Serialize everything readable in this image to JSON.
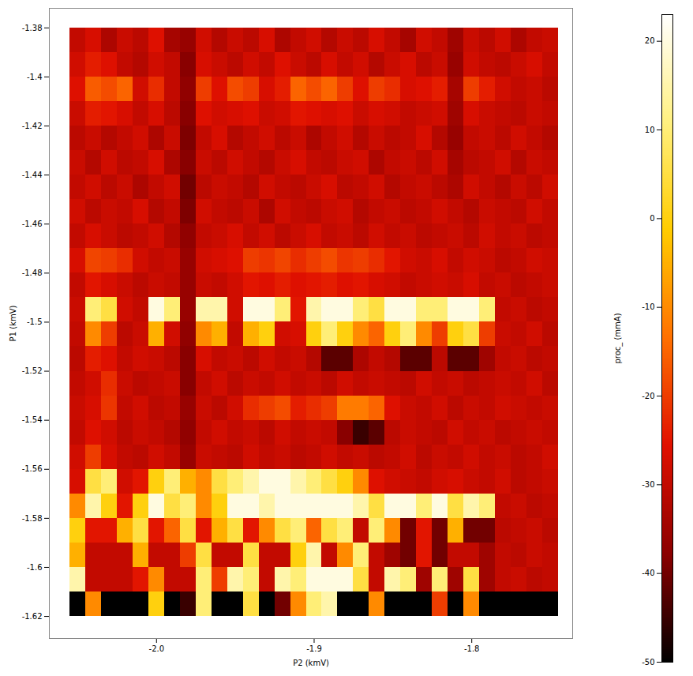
{
  "chart_data": {
    "type": "heatmap",
    "x_label": "P2 (kmV)",
    "y_label": "P1 (kmV)",
    "xlim": [
      -2.068,
      -1.736
    ],
    "ylim": [
      -1.629,
      -1.372
    ],
    "xticks": [
      {
        "value": -2,
        "label": "-2.0"
      },
      -1.9,
      -1.8
    ],
    "yticks": [
      -1.38,
      -1.4,
      -1.42,
      -1.44,
      -1.46,
      -1.48,
      -1.5,
      -1.52,
      -1.54,
      -1.56,
      -1.58,
      -1.6,
      -1.62
    ],
    "x": [
      -2.05,
      -2.04,
      -2.03,
      -2.02,
      -2.01,
      -2.0,
      -1.99,
      -1.98,
      -1.97,
      -1.96,
      -1.95,
      -1.94,
      -1.93,
      -1.92,
      -1.91,
      -1.9,
      -1.89,
      -1.88,
      -1.87,
      -1.86,
      -1.85,
      -1.84,
      -1.83,
      -1.82,
      -1.81,
      -1.8,
      -1.79,
      -1.78,
      -1.77,
      -1.76,
      -1.75
    ],
    "y": [
      -1.385,
      -1.395,
      -1.405,
      -1.415,
      -1.425,
      -1.435,
      -1.445,
      -1.455,
      -1.465,
      -1.475,
      -1.485,
      -1.495,
      -1.505,
      -1.515,
      -1.525,
      -1.535,
      -1.545,
      -1.555,
      -1.565,
      -1.575,
      -1.585,
      -1.595,
      -1.605,
      -1.615
    ],
    "values": [
      [
        -30,
        -27,
        -33,
        -29,
        -31,
        -26,
        -34,
        -36,
        -28,
        -32,
        -29,
        -31,
        -27,
        -33,
        -30,
        -28,
        -32,
        -29,
        -31,
        -27,
        -30,
        -34,
        -28,
        -30,
        -35,
        -29,
        -31,
        -28,
        -33,
        -30,
        -29
      ],
      [
        -28,
        -24,
        -26,
        -30,
        -32,
        -28,
        -30,
        -38,
        -27,
        -29,
        -31,
        -28,
        -30,
        -26,
        -29,
        -31,
        -27,
        -30,
        -28,
        -32,
        -29,
        -27,
        -31,
        -29,
        -36,
        -28,
        -30,
        -31,
        -29,
        -27,
        -30
      ],
      [
        -26,
        -16,
        -18,
        -15,
        -28,
        -22,
        -30,
        -37,
        -20,
        -26,
        -18,
        -20,
        -27,
        -24,
        -15,
        -18,
        -15,
        -20,
        -26,
        -20,
        -22,
        -27,
        -26,
        -24,
        -34,
        -20,
        -24,
        -28,
        -30,
        -29,
        -31
      ],
      [
        -29,
        -24,
        -25,
        -27,
        -30,
        -27,
        -31,
        -38,
        -26,
        -28,
        -27,
        -26,
        -29,
        -28,
        -25,
        -26,
        -27,
        -26,
        -29,
        -27,
        -28,
        -30,
        -29,
        -28,
        -35,
        -27,
        -29,
        -30,
        -31,
        -29,
        -30
      ],
      [
        -31,
        -29,
        -32,
        -30,
        -28,
        -33,
        -29,
        -39,
        -30,
        -27,
        -32,
        -30,
        -28,
        -31,
        -29,
        -33,
        -30,
        -28,
        -32,
        -29,
        -31,
        -30,
        -27,
        -32,
        -36,
        -30,
        -29,
        -31,
        -28,
        -30,
        -32
      ],
      [
        -29,
        -32,
        -28,
        -31,
        -30,
        -27,
        -33,
        -38,
        -29,
        -31,
        -28,
        -30,
        -32,
        -29,
        -27,
        -30,
        -31,
        -29,
        -28,
        -33,
        -30,
        -29,
        -31,
        -28,
        -34,
        -31,
        -30,
        -28,
        -32,
        -29,
        -30
      ],
      [
        -30,
        -28,
        -31,
        -29,
        -33,
        -30,
        -28,
        -40,
        -31,
        -29,
        -30,
        -32,
        -28,
        -30,
        -31,
        -29,
        -27,
        -31,
        -30,
        -28,
        -32,
        -30,
        -29,
        -31,
        -33,
        -28,
        -30,
        -32,
        -29,
        -31,
        -28
      ],
      [
        -28,
        -31,
        -29,
        -30,
        -27,
        -32,
        -30,
        -39,
        -28,
        -30,
        -31,
        -29,
        -33,
        -28,
        -30,
        -31,
        -29,
        -28,
        -32,
        -30,
        -29,
        -31,
        -30,
        -28,
        -30,
        -32,
        -29,
        -30,
        -31,
        -28,
        -30
      ],
      [
        -30,
        -27,
        -29,
        -31,
        -30,
        -28,
        -32,
        -37,
        -30,
        -29,
        -27,
        -30,
        -28,
        -31,
        -29,
        -27,
        -30,
        -29,
        -31,
        -28,
        -30,
        -29,
        -31,
        -30,
        -29,
        -31,
        -28,
        -30,
        -29,
        -31,
        -30
      ],
      [
        -27,
        -19,
        -20,
        -22,
        -28,
        -30,
        -29,
        -36,
        -28,
        -27,
        -26,
        -20,
        -21,
        -19,
        -22,
        -20,
        -18,
        -21,
        -20,
        -22,
        -25,
        -28,
        -29,
        -27,
        -30,
        -28,
        -29,
        -31,
        -30,
        -28,
        -29
      ],
      [
        -30,
        -25,
        -27,
        -29,
        -31,
        -29,
        -30,
        -36,
        -29,
        -30,
        -28,
        -25,
        -26,
        -24,
        -26,
        -25,
        -24,
        -26,
        -25,
        -27,
        -28,
        -30,
        -29,
        -28,
        -29,
        -27,
        -30,
        -29,
        -31,
        -30,
        -29
      ],
      [
        -29,
        10,
        5,
        -28,
        -30,
        20,
        10,
        -36,
        15,
        15,
        -28,
        20,
        20,
        10,
        -25,
        15,
        20,
        20,
        10,
        5,
        20,
        20,
        10,
        10,
        20,
        20,
        10,
        -30,
        -29,
        -31,
        -30
      ],
      [
        -30,
        -10,
        -20,
        -31,
        -29,
        -5,
        -28,
        -37,
        -10,
        -5,
        -30,
        -5,
        0,
        -28,
        -27,
        0,
        10,
        0,
        -10,
        -15,
        0,
        10,
        -10,
        -20,
        0,
        5,
        -20,
        -29,
        -30,
        -28,
        -31
      ],
      [
        -31,
        -24,
        -26,
        -30,
        -28,
        -29,
        -31,
        -38,
        -27,
        -30,
        -29,
        -31,
        -28,
        -30,
        -29,
        -32,
        -42,
        -42,
        -33,
        -30,
        -32,
        -42,
        -42,
        -31,
        -42,
        -42,
        -35,
        -30,
        -29,
        -31,
        -30
      ],
      [
        -30,
        -28,
        -22,
        -29,
        -31,
        -30,
        -29,
        -38,
        -30,
        -28,
        -31,
        -29,
        -30,
        -28,
        -30,
        -29,
        -31,
        -28,
        -30,
        -29,
        -30,
        -31,
        -28,
        -30,
        -29,
        -31,
        -30,
        -29,
        -30,
        -28,
        -31
      ],
      [
        -29,
        -27,
        -21,
        -30,
        -28,
        -31,
        -30,
        -36,
        -29,
        -31,
        -28,
        -22,
        -20,
        -18,
        -24,
        -22,
        -20,
        -12,
        -12,
        -15,
        -26,
        -29,
        -30,
        -28,
        -31,
        -29,
        -30,
        -28,
        -29,
        -30,
        -29
      ],
      [
        -30,
        -26,
        -28,
        -31,
        -29,
        -30,
        -32,
        -37,
        -30,
        -28,
        -30,
        -29,
        -31,
        -28,
        -30,
        -29,
        -30,
        -38,
        -45,
        -42,
        -31,
        -29,
        -30,
        -31,
        -28,
        -30,
        -29,
        -31,
        -30,
        -29,
        -30
      ],
      [
        -28,
        -20,
        -27,
        -30,
        -31,
        -28,
        -30,
        -36,
        -29,
        -30,
        -31,
        -28,
        -30,
        -29,
        -31,
        -30,
        -28,
        -30,
        -29,
        -31,
        -30,
        -28,
        -31,
        -29,
        -30,
        -28,
        -30,
        -29,
        -31,
        -30,
        -28
      ],
      [
        -27,
        5,
        10,
        -28,
        -25,
        0,
        10,
        -5,
        -10,
        5,
        10,
        15,
        20,
        20,
        15,
        10,
        5,
        0,
        -10,
        -26,
        -28,
        -29,
        -30,
        -28,
        -27,
        -29,
        -30,
        -28,
        -31,
        -30,
        -29
      ],
      [
        -10,
        15,
        0,
        -25,
        0,
        20,
        5,
        10,
        -10,
        0,
        20,
        20,
        15,
        20,
        20,
        20,
        20,
        20,
        15,
        5,
        20,
        20,
        10,
        20,
        5,
        15,
        10,
        -30,
        -29,
        -31,
        -30
      ],
      [
        0,
        -25,
        -25,
        -5,
        5,
        -25,
        -15,
        5,
        -25,
        -5,
        5,
        -25,
        -10,
        5,
        10,
        -15,
        5,
        10,
        -30,
        10,
        -10,
        -40,
        -25,
        -40,
        -5,
        -40,
        -40,
        -31,
        -30,
        -29,
        -31
      ],
      [
        -5,
        -30,
        -30,
        -30,
        -5,
        -30,
        -30,
        -20,
        5,
        -30,
        -30,
        5,
        -30,
        -30,
        0,
        15,
        -30,
        -10,
        10,
        -30,
        -35,
        -40,
        -25,
        -40,
        -30,
        -30,
        -35,
        -30,
        -31,
        -29,
        -30
      ],
      [
        15,
        -30,
        -30,
        -30,
        -25,
        -10,
        -30,
        -30,
        10,
        -20,
        15,
        10,
        -30,
        15,
        10,
        20,
        20,
        20,
        5,
        -30,
        15,
        10,
        -35,
        10,
        -35,
        5,
        -35,
        -30,
        -29,
        -31,
        -30
      ],
      [
        -50,
        -10,
        -50,
        -50,
        -50,
        0,
        -50,
        -45,
        10,
        -50,
        -50,
        5,
        -50,
        -40,
        -10,
        10,
        15,
        -50,
        -50,
        -10,
        -50,
        -50,
        -50,
        -20,
        -50,
        -10,
        -50,
        -50,
        -50,
        -50,
        -50
      ]
    ],
    "colorbar": {
      "label": "proc_ (mmA)",
      "range": [
        -50,
        23
      ],
      "ticks": [
        -50,
        -40,
        -30,
        -20,
        -10,
        0,
        10,
        20
      ]
    }
  }
}
